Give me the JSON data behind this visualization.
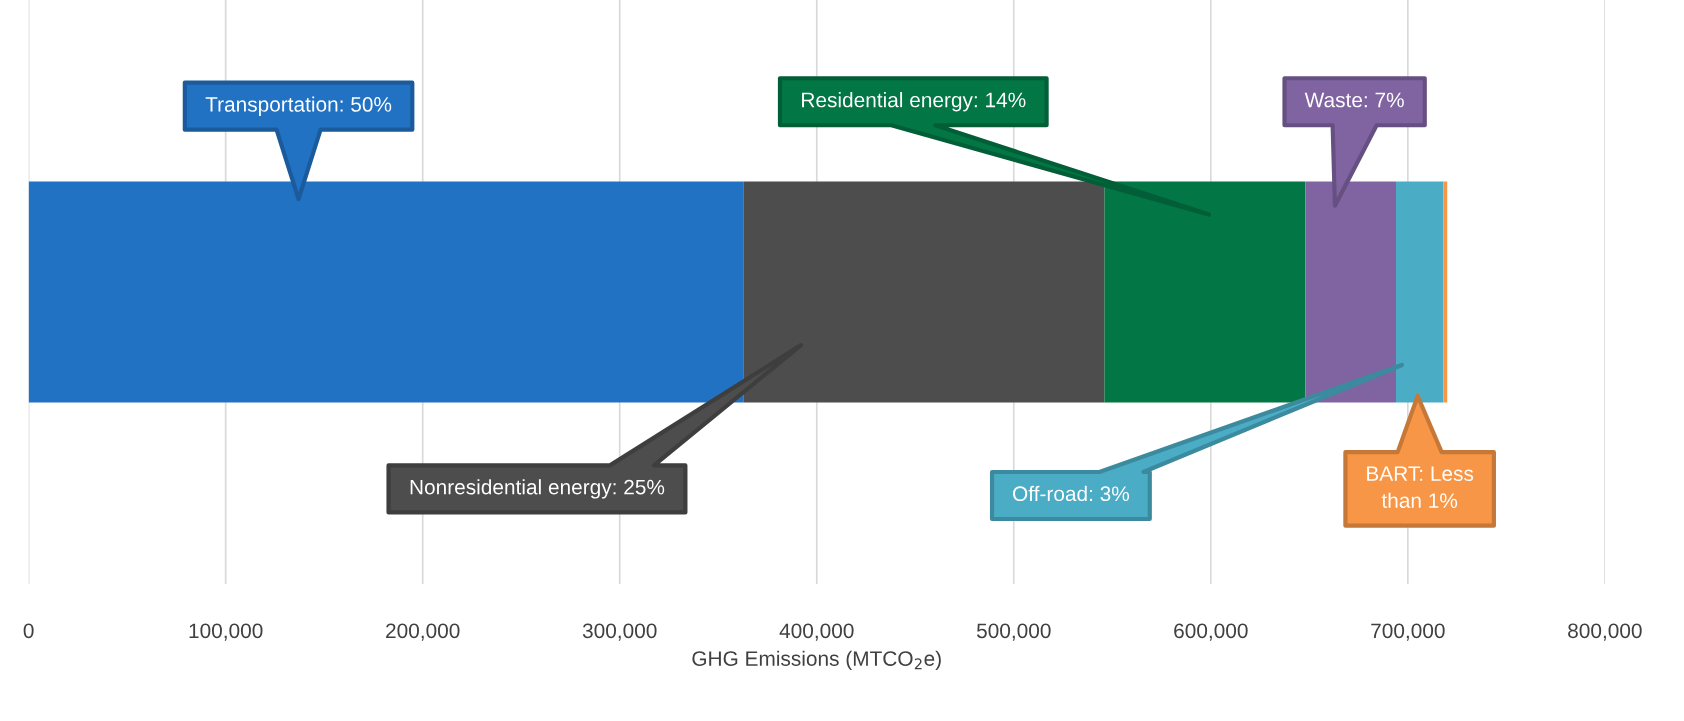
{
  "chart_data": {
    "type": "bar",
    "orientation": "horizontal",
    "stacked": true,
    "categories": [
      null
    ],
    "xlabel": "GHG Emissions (MTCO$_{2}$e)",
    "xlim": [
      0,
      800000
    ],
    "xticks": [
      0,
      {
        "value": 100000,
        "label": "100,000"
      },
      {
        "value": 200000,
        "label": "200,000"
      },
      {
        "value": 300000,
        "label": "300,000"
      },
      {
        "value": 400000,
        "label": "400,000"
      },
      {
        "value": 500000,
        "label": "500,000"
      },
      {
        "value": 600000,
        "label": "600,000"
      },
      {
        "value": 700000,
        "label": "700,000"
      },
      {
        "value": 800000,
        "label": "800,000"
      }
    ],
    "grid": "x",
    "tick_labels": "x",
    "legend": false,
    "series": [
      {
        "color": "#2272c3",
        "values": [
          363000
        ]
      },
      {
        "color": "#4d4d4d",
        "values": [
          183000
        ]
      },
      {
        "color": "#037645",
        "values": [
          102000
        ]
      },
      {
        "color": "#8064a2",
        "values": [
          46000
        ]
      },
      {
        "color": "#4bacc6",
        "values": [
          24000
        ]
      },
      {
        "color": "#f79646",
        "values": [
          2000
        ]
      }
    ],
    "annotations": [
      "Transportation: 50%",
      "Nonresidential energy: 25%",
      "Residential energy: 14%",
      "Waste: 7%",
      "Off-road: 3%",
      "BART: Less\nthan 1%"
    ]
  }
}
